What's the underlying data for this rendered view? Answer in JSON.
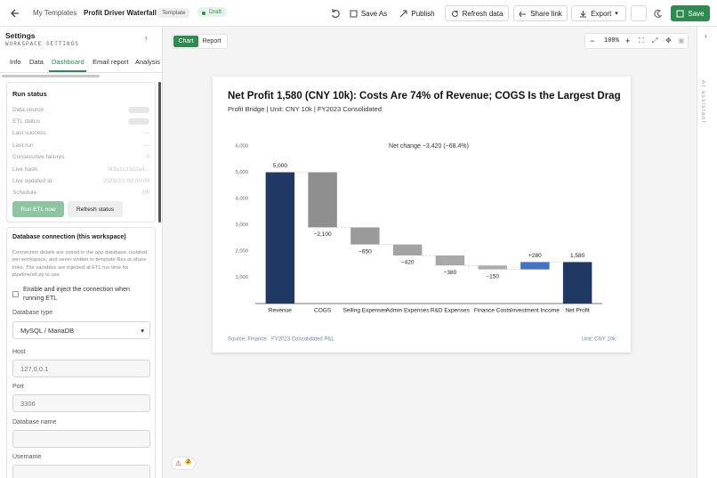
{
  "topbar": {
    "breadcrumb": "My Templates",
    "title": "Profit Driver Waterfall",
    "badge": "Template",
    "status": "Draft",
    "actions": [
      "Save As",
      "Publish",
      "Refresh data",
      "Share link",
      "Export",
      "Save"
    ]
  },
  "sidebar": {
    "title": "Settings",
    "subtitle": "WORKSPACE SETTINGS",
    "tabs": [
      "Info",
      "Data",
      "Dashboard",
      "Email report",
      "Analysis"
    ],
    "active_tab": 2,
    "run_status": {
      "title": "Run status",
      "rows": [
        {
          "label": "Data source"
        },
        {
          "label": "ETL status"
        },
        {
          "label": "Last success",
          "value": "—"
        },
        {
          "label": "Last run",
          "value": "—"
        },
        {
          "label": "Consecutive failures",
          "value": "0"
        },
        {
          "label": "Live hash",
          "value": "f43a1c33d2a4..."
        },
        {
          "label": "Live updated at",
          "value": "2025/2/1 09:00:00"
        },
        {
          "label": "Schedule",
          "value": "Off"
        }
      ],
      "buttons": [
        "Run ETL now",
        "Refresh status"
      ]
    },
    "database": {
      "title": "Database connection (this workspace)",
      "note": "Connection details are stored in the app database, isolated per workspace, and never written to template files or share links. The variables are injected at ETL run time for pipeline/etl.py to use.",
      "checkbox": "Enable and inject the connection when running ETL",
      "type_label": "Database type",
      "type_value": "MySQL / MariaDB",
      "fields": [
        {
          "label": "Host",
          "value": "127.0.0.1"
        },
        {
          "label": "Port",
          "value": "3306"
        },
        {
          "label": "Database name"
        },
        {
          "label": "Username"
        }
      ]
    }
  },
  "canvas": {
    "views": [
      "Chart",
      "Report"
    ],
    "active_view": 0,
    "zoom": "100%",
    "chart": {
      "type": "waterfall",
      "title": "Net Profit 1,580 (CNY 10k): Costs Are 74% of Revenue; COGS Is the Largest Drag",
      "subtitle": "Profit Bridge | Unit: CNY 10k | FY2023 Consolidated",
      "annotation": "Net change −3,420 (−68.4%)",
      "categories": [
        "Revenue",
        "COGS",
        "Selling Expenses",
        "Admin Expenses",
        "R&D Expenses",
        "Finance Costs",
        "Investment Income",
        "Net Profit"
      ],
      "values": [
        5000,
        -2100,
        -650,
        -420,
        -380,
        -150,
        280,
        1580
      ],
      "value_labels": [
        "5,000",
        "−2,100",
        "−650",
        "−420",
        "−380",
        "−150",
        "+280",
        "1,580"
      ],
      "colors": [
        "#1f3864",
        "#8f8f8f",
        "#9a9a9a",
        "#a3a3a3",
        "#a8a8a8",
        "#adadad",
        "#4472c4",
        "#1f3864"
      ],
      "ylim": [
        0,
        6000
      ],
      "yticks": [
        {
          "value": 1000,
          "label": "1,000"
        },
        {
          "value": 2000,
          "label": "2,000"
        },
        {
          "value": 3000,
          "label": "3,000"
        },
        {
          "value": 4000,
          "label": "4,000"
        },
        {
          "value": 5000,
          "label": "5,000"
        },
        {
          "value": 6000,
          "label": "6,000"
        }
      ],
      "grid": false,
      "source": "Source: Finance · FY2023 Consolidated P&L",
      "unit": "Unit: CNY 10k"
    }
  },
  "warnings": 2,
  "assistant": "AI assistant"
}
